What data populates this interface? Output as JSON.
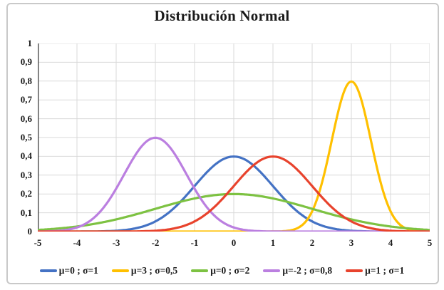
{
  "chart_data": {
    "type": "line",
    "title": "Distribución Normal",
    "xlabel": "",
    "ylabel": "",
    "x_range": [
      -5,
      5
    ],
    "y_range": [
      0,
      1
    ],
    "x_ticks": [
      "-5",
      "-4",
      "-3",
      "-2",
      "-1",
      "0",
      "1",
      "2",
      "3",
      "4",
      "5"
    ],
    "y_ticks": [
      "1",
      "0,9",
      "0,8",
      "0,7",
      "0,6",
      "0,5",
      "0,4",
      "0,3",
      "0,2",
      "0,1",
      "0"
    ],
    "grid": true,
    "legend_position": "bottom",
    "curve_formula": "normal_pdf",
    "samples_per_unit": 25,
    "series": [
      {
        "name": "μ=0 ; σ=1",
        "mu": 0,
        "sigma": 1,
        "peak_y": 0.4,
        "color": "#4472C4"
      },
      {
        "name": "μ=3 ; σ=0,5",
        "mu": 3,
        "sigma": 0.5,
        "peak_y": 0.8,
        "color": "#FFC000"
      },
      {
        "name": "μ=0 ; σ=2",
        "mu": 0,
        "sigma": 2,
        "peak_y": 0.2,
        "color": "#7DC242"
      },
      {
        "name": "μ=-2 ; σ=0,8",
        "mu": -2,
        "sigma": 0.8,
        "peak_y": 0.5,
        "color": "#BB7FE0"
      },
      {
        "name": "μ=1 ; σ=1",
        "mu": 1,
        "sigma": 1,
        "peak_y": 0.4,
        "color": "#E8432D"
      }
    ],
    "colors": {
      "grid": "#D9D9D9",
      "axis": "#595959",
      "frame_border": "#C9C9C9",
      "text": "#1A1A1A",
      "background": "#FFFFFF"
    }
  }
}
